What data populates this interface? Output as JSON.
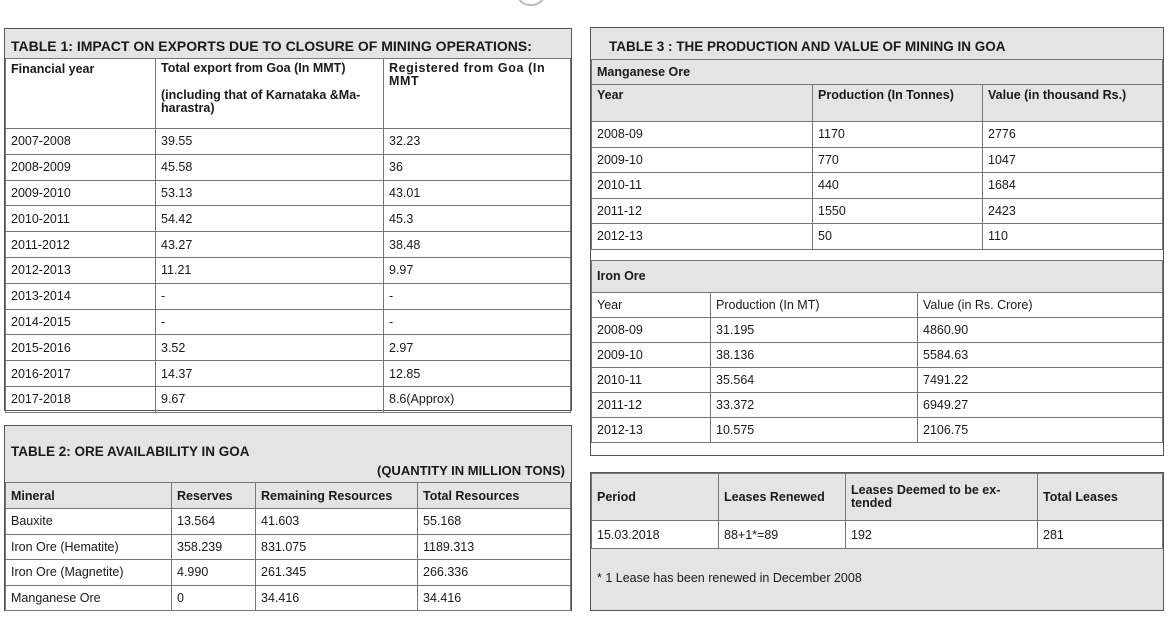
{
  "table1": {
    "title": "TABLE 1: IMPACT ON EXPORTS DUE TO CLOSURE OF MINING OPERATIONS:",
    "headers": {
      "year": "Financial year",
      "total": "Total export from Goa (In MMT)",
      "total_note": "(including that of Karnataka &Ma-harastra)",
      "registered": "Registered from Goa (In MMT"
    },
    "rows": [
      [
        "2007-2008",
        "39.55",
        "32.23"
      ],
      [
        "2008-2009",
        "45.58",
        "36"
      ],
      [
        "2009-2010",
        "53.13",
        "43.01"
      ],
      [
        "2010-2011",
        "54.42",
        "45.3"
      ],
      [
        "2011-2012",
        "43.27",
        "38.48"
      ],
      [
        "2012-2013",
        "11.21",
        "9.97"
      ],
      [
        "2013-2014",
        "-",
        "-"
      ],
      [
        "2014-2015",
        "-",
        "-"
      ],
      [
        "2015-2016",
        "3.52",
        "2.97"
      ],
      [
        "2016-2017",
        "14.37",
        "12.85"
      ],
      [
        "2017-2018",
        "9.67",
        "8.6(Approx)"
      ]
    ]
  },
  "table2": {
    "title": "TABLE 2: ORE AVAILABILITY IN GOA",
    "unit": "(QUANTITY IN MILLION TONS)",
    "headers": [
      "Mineral",
      "Reserves",
      "Remaining Resources",
      "Total Resources"
    ],
    "rows": [
      [
        "Bauxite",
        "13.564",
        "41.603",
        "55.168"
      ],
      [
        "Iron Ore (Hematite)",
        "358.239",
        "831.075",
        "1189.313"
      ],
      [
        "Iron Ore (Magnetite)",
        "4.990",
        "261.345",
        "266.336"
      ],
      [
        "Manganese Ore",
        "0",
        "34.416",
        "34.416"
      ]
    ]
  },
  "table3": {
    "title": "TABLE 3 : THE PRODUCTION AND VALUE OF MINING IN GOA",
    "manganese": {
      "label": "Manganese Ore",
      "headers": [
        "Year",
        "Production (In Tonnes)",
        "Value (in thousand Rs.)"
      ],
      "rows": [
        [
          "2008-09",
          "1170",
          "2776"
        ],
        [
          "2009-10",
          "770",
          "1047"
        ],
        [
          "2010-11",
          "440",
          "1684"
        ],
        [
          "2011-12",
          "1550",
          "2423"
        ],
        [
          "2012-13",
          "50",
          "110"
        ]
      ]
    },
    "iron": {
      "label": "Iron Ore",
      "headers": [
        "Year",
        "Production (In MT)",
        "Value (in Rs. Crore)"
      ],
      "rows": [
        [
          "2008-09",
          "31.195",
          "4860.90"
        ],
        [
          "2009-10",
          "38.136",
          "5584.63"
        ],
        [
          "2010-11",
          "35.564",
          "7491.22"
        ],
        [
          "2011-12",
          "33.372",
          "6949.27"
        ],
        [
          "2012-13",
          "10.575",
          "2106.75"
        ]
      ]
    }
  },
  "leases": {
    "headers": [
      "Period",
      "Leases Renewed",
      "Leases Deemed to be ex-tended",
      "Total Leases"
    ],
    "row": [
      "15.03.2018",
      "88+1*=89",
      "192",
      "281"
    ],
    "footnote": "* 1 Lease has been renewed in December 2008"
  }
}
